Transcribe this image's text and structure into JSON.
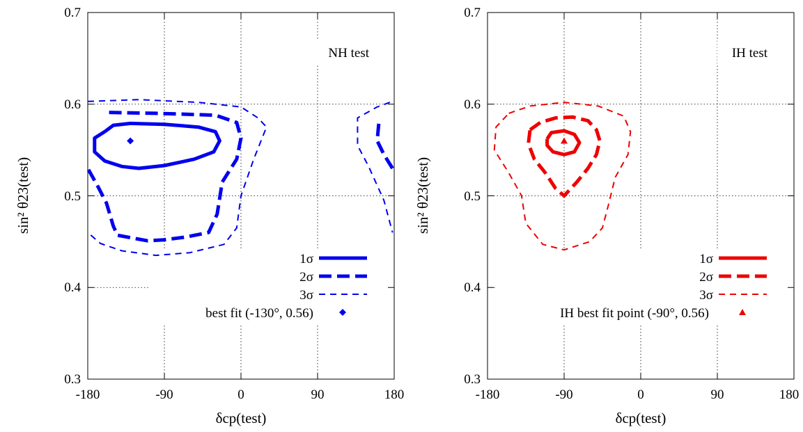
{
  "chart_data": [
    {
      "type": "contour",
      "annotation": "NH test",
      "xlabel": "δcp(test)",
      "ylabel": "sin² θ23(test)",
      "xlim": [
        -180,
        180
      ],
      "ylim": [
        0.3,
        0.7
      ],
      "xticks": [
        -180,
        -90,
        0,
        90,
        180
      ],
      "yticks": [
        0.3,
        0.4,
        0.5,
        0.6,
        0.7
      ],
      "grid": "dotted",
      "color": "#0000ee",
      "legend_position": "bottom-right",
      "series": [
        {
          "name": "1σ",
          "style": "solid-thick",
          "segments": [
            [
              [
                -160,
                0.57
              ],
              [
                -150,
                0.577
              ],
              [
                -130,
                0.579
              ],
              [
                -90,
                0.578
              ],
              [
                -50,
                0.575
              ],
              [
                -30,
                0.57
              ],
              [
                -25,
                0.56
              ],
              [
                -32,
                0.548
              ],
              [
                -55,
                0.54
              ],
              [
                -90,
                0.533
              ],
              [
                -120,
                0.53
              ],
              [
                -140,
                0.532
              ],
              [
                -160,
                0.538
              ],
              [
                -172,
                0.548
              ],
              [
                -172,
                0.563
              ],
              [
                -160,
                0.57
              ]
            ]
          ]
        },
        {
          "name": "2σ",
          "style": "dashed-thick",
          "segments": [
            [
              [
                -155,
                0.591
              ],
              [
                -100,
                0.59
              ],
              [
                -30,
                0.588
              ],
              [
                -5,
                0.58
              ],
              [
                0,
                0.563
              ],
              [
                -5,
                0.54
              ],
              [
                -22,
                0.515
              ],
              [
                -28,
                0.48
              ],
              [
                -38,
                0.46
              ],
              [
                -65,
                0.455
              ],
              [
                -90,
                0.452
              ],
              [
                -110,
                0.451
              ],
              [
                -145,
                0.457
              ],
              [
                -150,
                0.467
              ],
              [
                -158,
                0.492
              ],
              [
                -168,
                0.51
              ],
              [
                -180,
                0.53
              ]
            ],
            [
              [
                178,
                0.53
              ],
              [
                168,
                0.545
              ],
              [
                160,
                0.56
              ],
              [
                162,
                0.58
              ]
            ]
          ]
        },
        {
          "name": "3σ",
          "style": "dashed-thin",
          "segments": [
            [
              [
                -180,
                0.603
              ],
              [
                -120,
                0.605
              ],
              [
                -50,
                0.602
              ],
              [
                0,
                0.597
              ],
              [
                20,
                0.585
              ],
              [
                30,
                0.575
              ],
              [
                15,
                0.54
              ],
              [
                0,
                0.5
              ],
              [
                -5,
                0.465
              ],
              [
                -20,
                0.447
              ],
              [
                -60,
                0.438
              ],
              [
                -100,
                0.435
              ],
              [
                -140,
                0.44
              ],
              [
                -165,
                0.448
              ],
              [
                -180,
                0.46
              ]
            ],
            [
              [
                175,
                0.602
              ],
              [
                160,
                0.597
              ],
              [
                137,
                0.585
              ],
              [
                137,
                0.555
              ],
              [
                150,
                0.532
              ],
              [
                168,
                0.495
              ],
              [
                178,
                0.46
              ]
            ]
          ]
        }
      ],
      "best_fit": {
        "name": "best fit (-130°, 0.56)",
        "marker": "diamond",
        "x": -130,
        "y": 0.56
      }
    },
    {
      "type": "contour",
      "annotation": "IH test",
      "xlabel": "δcp(test)",
      "ylabel": "sin² θ23(test)",
      "xlim": [
        -180,
        180
      ],
      "ylim": [
        0.3,
        0.7
      ],
      "xticks": [
        -180,
        -90,
        0,
        90,
        180
      ],
      "yticks": [
        0.3,
        0.4,
        0.5,
        0.6,
        0.7
      ],
      "grid": "dotted",
      "color": "#ee0000",
      "legend_position": "bottom-right",
      "series": [
        {
          "name": "1σ",
          "style": "solid-thick",
          "segments": [
            [
              [
                -110,
                0.562
              ],
              [
                -105,
                0.569
              ],
              [
                -90,
                0.571
              ],
              [
                -78,
                0.567
              ],
              [
                -72,
                0.558
              ],
              [
                -78,
                0.548
              ],
              [
                -90,
                0.545
              ],
              [
                -103,
                0.548
              ],
              [
                -110,
                0.555
              ],
              [
                -110,
                0.562
              ]
            ]
          ]
        },
        {
          "name": "2σ",
          "style": "dashed-thick",
          "segments": [
            [
              [
                -130,
                0.572
              ],
              [
                -118,
                0.58
              ],
              [
                -100,
                0.585
              ],
              [
                -80,
                0.586
              ],
              [
                -62,
                0.582
              ],
              [
                -52,
                0.572
              ],
              [
                -48,
                0.56
              ],
              [
                -52,
                0.545
              ],
              [
                -62,
                0.53
              ],
              [
                -75,
                0.515
              ],
              [
                -90,
                0.5
              ],
              [
                -100,
                0.508
              ],
              [
                -112,
                0.525
              ],
              [
                -125,
                0.54
              ],
              [
                -132,
                0.557
              ],
              [
                -130,
                0.572
              ]
            ]
          ]
        },
        {
          "name": "3σ",
          "style": "dashed-thin",
          "segments": [
            [
              [
                -155,
                0.59
              ],
              [
                -130,
                0.598
              ],
              [
                -90,
                0.602
              ],
              [
                -50,
                0.598
              ],
              [
                -20,
                0.587
              ],
              [
                -12,
                0.57
              ],
              [
                -15,
                0.545
              ],
              [
                -30,
                0.52
              ],
              [
                -38,
                0.49
              ],
              [
                -45,
                0.465
              ],
              [
                -60,
                0.45
              ],
              [
                -90,
                0.441
              ],
              [
                -115,
                0.447
              ],
              [
                -135,
                0.47
              ],
              [
                -140,
                0.5
              ],
              [
                -155,
                0.525
              ],
              [
                -172,
                0.55
              ],
              [
                -170,
                0.575
              ],
              [
                -155,
                0.59
              ]
            ]
          ]
        }
      ],
      "best_fit": {
        "name": "IH best fit point (-90°, 0.56)",
        "marker": "triangle",
        "x": -90,
        "y": 0.56
      }
    }
  ]
}
